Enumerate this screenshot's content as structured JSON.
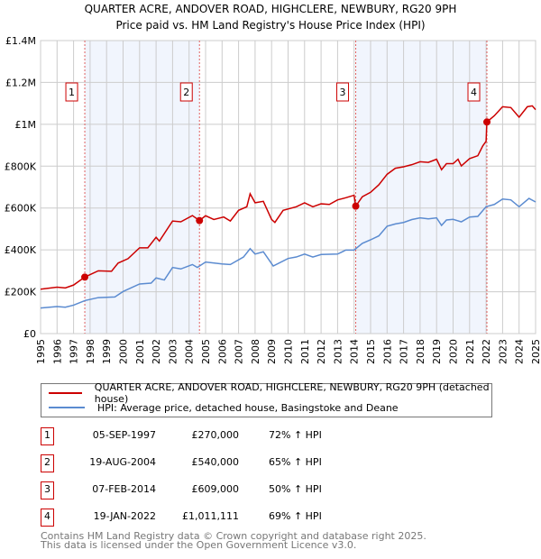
{
  "title_line1": "QUARTER ACRE, ANDOVER ROAD, HIGHCLERE, NEWBURY, RG20 9PH",
  "title_line2": "Price paid vs. HM Land Registry's House Price Index (HPI)",
  "chart_data": {
    "type": "line",
    "xlim": [
      1995,
      2025
    ],
    "ylim": [
      0,
      1400000
    ],
    "y_ticks": [
      0,
      200000,
      400000,
      600000,
      800000,
      1000000,
      1200000,
      1400000
    ],
    "y_tick_labels": [
      "£0",
      "£200K",
      "£400K",
      "£600K",
      "£800K",
      "£1M",
      "£1.2M",
      "£1.4M"
    ],
    "x_ticks": [
      "1995",
      "1996",
      "1997",
      "1998",
      "1999",
      "2000",
      "2001",
      "2002",
      "2003",
      "2004",
      "2005",
      "2006",
      "2007",
      "2008",
      "2009",
      "2010",
      "2011",
      "2012",
      "2013",
      "2014",
      "2015",
      "2016",
      "2017",
      "2018",
      "2019",
      "2020",
      "2021",
      "2022",
      "2023",
      "2024",
      "2025"
    ],
    "grid": true,
    "series": [
      {
        "name": "QUARTER ACRE, ANDOVER ROAD, HIGHCLERE, NEWBURY, RG20 9PH (detached house)",
        "color": "#cc0000",
        "x": [
          1995,
          1996,
          1996.5,
          1997,
          1997.68,
          1998.5,
          1999.3,
          1999.7,
          2000.3,
          2001,
          2001.5,
          2002,
          2002.2,
          2003,
          2003.5,
          2004.2,
          2004.63,
          2005,
          2005.5,
          2006.1,
          2006.5,
          2007,
          2007.5,
          2007.7,
          2008,
          2008.5,
          2009,
          2009.2,
          2009.7,
          2010.5,
          2011,
          2011.5,
          2012,
          2012.5,
          2013,
          2013.5,
          2014,
          2014.1,
          2014.5,
          2015,
          2015.5,
          2016,
          2016.5,
          2017,
          2017.5,
          2018,
          2018.5,
          2019,
          2019.3,
          2019.6,
          2020,
          2020.3,
          2020.5,
          2021,
          2021.5,
          2021.8,
          2022.0,
          2022.05,
          2022.5,
          2023,
          2023.5,
          2024,
          2024.5,
          2024.8,
          2025
        ],
        "y": [
          212000,
          222000,
          218000,
          232000,
          270000,
          300000,
          298000,
          337000,
          358000,
          410000,
          410000,
          460000,
          442000,
          538000,
          534000,
          564000,
          540000,
          563000,
          545000,
          557000,
          538000,
          589000,
          606000,
          668000,
          625000,
          632000,
          545000,
          531000,
          589000,
          606000,
          625000,
          606000,
          620000,
          617000,
          639000,
          649000,
          661000,
          609000,
          654000,
          675000,
          711000,
          761000,
          790000,
          797000,
          807000,
          821000,
          818000,
          833000,
          783000,
          812000,
          812000,
          833000,
          801000,
          836000,
          850000,
          897000,
          919000,
          1011111,
          1041000,
          1084000,
          1080000,
          1034000,
          1084000,
          1088000,
          1070000
        ]
      },
      {
        "name": "HPI: Average price, detached house, Basingstoke and Deane",
        "color": "#5b8bd0",
        "x": [
          1995,
          1996,
          1996.5,
          1997,
          1997.7,
          1998.5,
          1999.5,
          2000,
          2001,
          2001.7,
          2002,
          2002.5,
          2003,
          2003.5,
          2004.2,
          2004.5,
          2005,
          2006,
          2006.5,
          2007.3,
          2007.7,
          2008,
          2008.5,
          2009.1,
          2010,
          2010.5,
          2011,
          2011.5,
          2012,
          2013,
          2013.5,
          2014,
          2014.5,
          2015,
          2015.5,
          2016,
          2016.5,
          2017,
          2017.5,
          2018,
          2018.5,
          2019,
          2019.3,
          2019.6,
          2020,
          2020.5,
          2021,
          2021.5,
          2022,
          2022.5,
          2023,
          2023.5,
          2024,
          2024.6,
          2025
        ],
        "y": [
          122000,
          129000,
          126000,
          136000,
          158000,
          172000,
          175000,
          201000,
          237000,
          241000,
          266000,
          256000,
          316000,
          309000,
          330000,
          316000,
          342000,
          333000,
          330000,
          366000,
          406000,
          380000,
          391000,
          323000,
          359000,
          366000,
          380000,
          366000,
          378000,
          380000,
          399000,
          399000,
          431000,
          448000,
          467000,
          513000,
          524000,
          531000,
          545000,
          553000,
          548000,
          553000,
          517000,
          543000,
          546000,
          534000,
          557000,
          560000,
          606000,
          617000,
          643000,
          639000,
          606000,
          646000,
          629000
        ]
      }
    ],
    "sales": [
      {
        "label": "1",
        "x": 1997.68,
        "y": 270000,
        "date": "05-SEP-1997",
        "price": "£270,000",
        "hpi": "72% ↑ HPI"
      },
      {
        "label": "2",
        "x": 2004.63,
        "y": 540000,
        "date": "19-AUG-2004",
        "price": "£540,000",
        "hpi": "65% ↑ HPI"
      },
      {
        "label": "3",
        "x": 2014.1,
        "y": 609000,
        "date": "07-FEB-2014",
        "price": "£609,000",
        "hpi": "50% ↑ HPI"
      },
      {
        "label": "4",
        "x": 2022.05,
        "y": 1011111,
        "date": "19-JAN-2022",
        "price": "£1,011,111",
        "hpi": "69% ↑ HPI"
      }
    ],
    "shaded_ranges": [
      [
        1997.68,
        2004.63
      ],
      [
        2014.1,
        2022.05
      ]
    ],
    "legend_position": "below"
  },
  "footer_line1": "Contains HM Land Registry data © Crown copyright and database right 2025.",
  "footer_line2": "This data is licensed under the Open Government Licence v3.0."
}
